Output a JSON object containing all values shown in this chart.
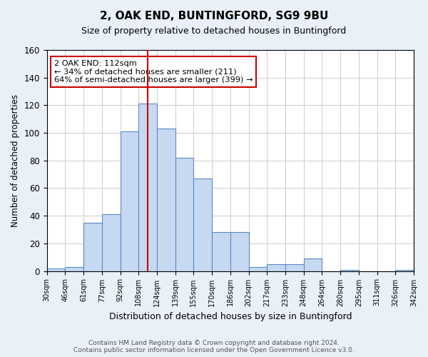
{
  "title1": "2, OAK END, BUNTINGFORD, SG9 9BU",
  "title2": "Size of property relative to detached houses in Buntingford",
  "xlabel": "Distribution of detached houses by size in Buntingford",
  "ylabel": "Number of detached properties",
  "bin_labels": [
    "30sqm",
    "46sqm",
    "61sqm",
    "77sqm",
    "92sqm",
    "108sqm",
    "124sqm",
    "139sqm",
    "155sqm",
    "170sqm",
    "186sqm",
    "202sqm",
    "217sqm",
    "233sqm",
    "248sqm",
    "264sqm",
    "280sqm",
    "295sqm",
    "311sqm",
    "326sqm",
    "342sqm"
  ],
  "bar_values": [
    2,
    3,
    35,
    41,
    101,
    121,
    103,
    82,
    67,
    28,
    28,
    3,
    5,
    5,
    9,
    0,
    1,
    0,
    0,
    1
  ],
  "bar_color": "#c6d9f0",
  "bar_edge_color": "#5a8ac6",
  "vline_x": 5.5,
  "vline_color": "#cc0000",
  "annotation_text": "2 OAK END: 112sqm\n← 34% of detached houses are smaller (211)\n64% of semi-detached houses are larger (399) →",
  "annotation_box_color": "#ffffff",
  "annotation_box_edge": "#cc0000",
  "ylim": [
    0,
    160
  ],
  "yticks": [
    0,
    20,
    40,
    60,
    80,
    100,
    120,
    140,
    160
  ],
  "footer": "Contains HM Land Registry data © Crown copyright and database right 2024.\nContains public sector information licensed under the Open Government Licence v3.0.",
  "bg_color": "#eaf0f8",
  "plot_bg_color": "#ffffff",
  "grid_color": "#cccccc"
}
